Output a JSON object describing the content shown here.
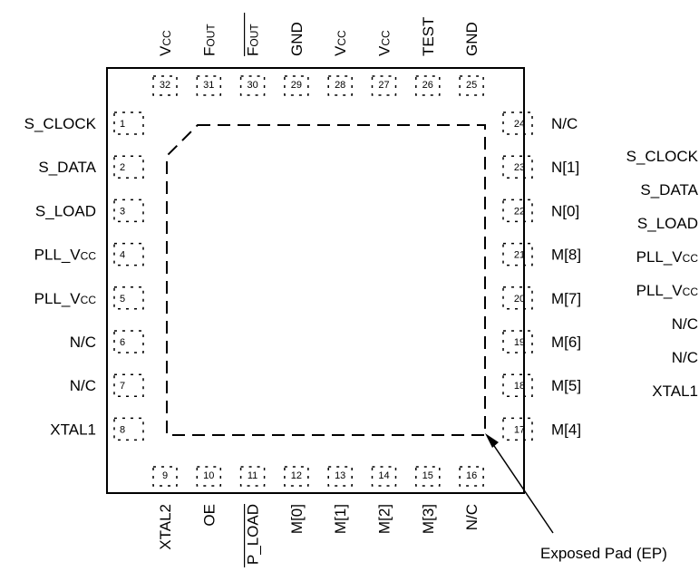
{
  "package": {
    "top_pins": [
      {
        "num": "32",
        "name": "V",
        "sub": "CC",
        "overbar": false
      },
      {
        "num": "31",
        "name": "F",
        "sub": "OUT",
        "overbar": false
      },
      {
        "num": "30",
        "name": "F",
        "sub": "OUT",
        "overbar": true
      },
      {
        "num": "29",
        "name": "GND",
        "sub": "",
        "overbar": false
      },
      {
        "num": "28",
        "name": "V",
        "sub": "CC",
        "overbar": false
      },
      {
        "num": "27",
        "name": "V",
        "sub": "CC",
        "overbar": false
      },
      {
        "num": "26",
        "name": "TEST",
        "sub": "",
        "overbar": false
      },
      {
        "num": "25",
        "name": "GND",
        "sub": "",
        "overbar": false
      }
    ],
    "left_pins": [
      {
        "num": "1",
        "name": "S_CLOCK",
        "sub": ""
      },
      {
        "num": "2",
        "name": "S_DATA",
        "sub": ""
      },
      {
        "num": "3",
        "name": "S_LOAD",
        "sub": ""
      },
      {
        "num": "4",
        "name": "PLL_V",
        "sub": "CC"
      },
      {
        "num": "5",
        "name": "PLL_V",
        "sub": "CC"
      },
      {
        "num": "6",
        "name": "N/C",
        "sub": ""
      },
      {
        "num": "7",
        "name": "N/C",
        "sub": ""
      },
      {
        "num": "8",
        "name": "XTAL1",
        "sub": ""
      }
    ],
    "bottom_pins": [
      {
        "num": "9",
        "name": "XTAL2",
        "overbar": false
      },
      {
        "num": "10",
        "name": "OE",
        "overbar": false
      },
      {
        "num": "11",
        "name": "P_LOAD",
        "overbar": true
      },
      {
        "num": "12",
        "name": "M[0]",
        "overbar": false
      },
      {
        "num": "13",
        "name": "M[1]",
        "overbar": false
      },
      {
        "num": "14",
        "name": "M[2]",
        "overbar": false
      },
      {
        "num": "15",
        "name": "M[3]",
        "overbar": false
      },
      {
        "num": "16",
        "name": "N/C",
        "overbar": false
      }
    ],
    "right_pins": [
      {
        "num": "24",
        "name": "N/C"
      },
      {
        "num": "23",
        "name": "N[1]"
      },
      {
        "num": "22",
        "name": "N[0]"
      },
      {
        "num": "21",
        "name": "M[8]"
      },
      {
        "num": "20",
        "name": "M[7]"
      },
      {
        "num": "19",
        "name": "M[6]"
      },
      {
        "num": "18",
        "name": "M[5]"
      },
      {
        "num": "17",
        "name": "M[4]"
      }
    ],
    "exposed_pad_label": "Exposed Pad (EP)"
  },
  "ghost_labels": [
    {
      "name": "S_CLOCK",
      "sub": ""
    },
    {
      "name": "S_DATA",
      "sub": ""
    },
    {
      "name": "S_LOAD",
      "sub": ""
    },
    {
      "name": "PLL_V",
      "sub": "CC"
    },
    {
      "name": "PLL_V",
      "sub": "CC"
    },
    {
      "name": "N/C",
      "sub": ""
    },
    {
      "name": "N/C",
      "sub": ""
    },
    {
      "name": "XTAL1",
      "sub": ""
    }
  ]
}
